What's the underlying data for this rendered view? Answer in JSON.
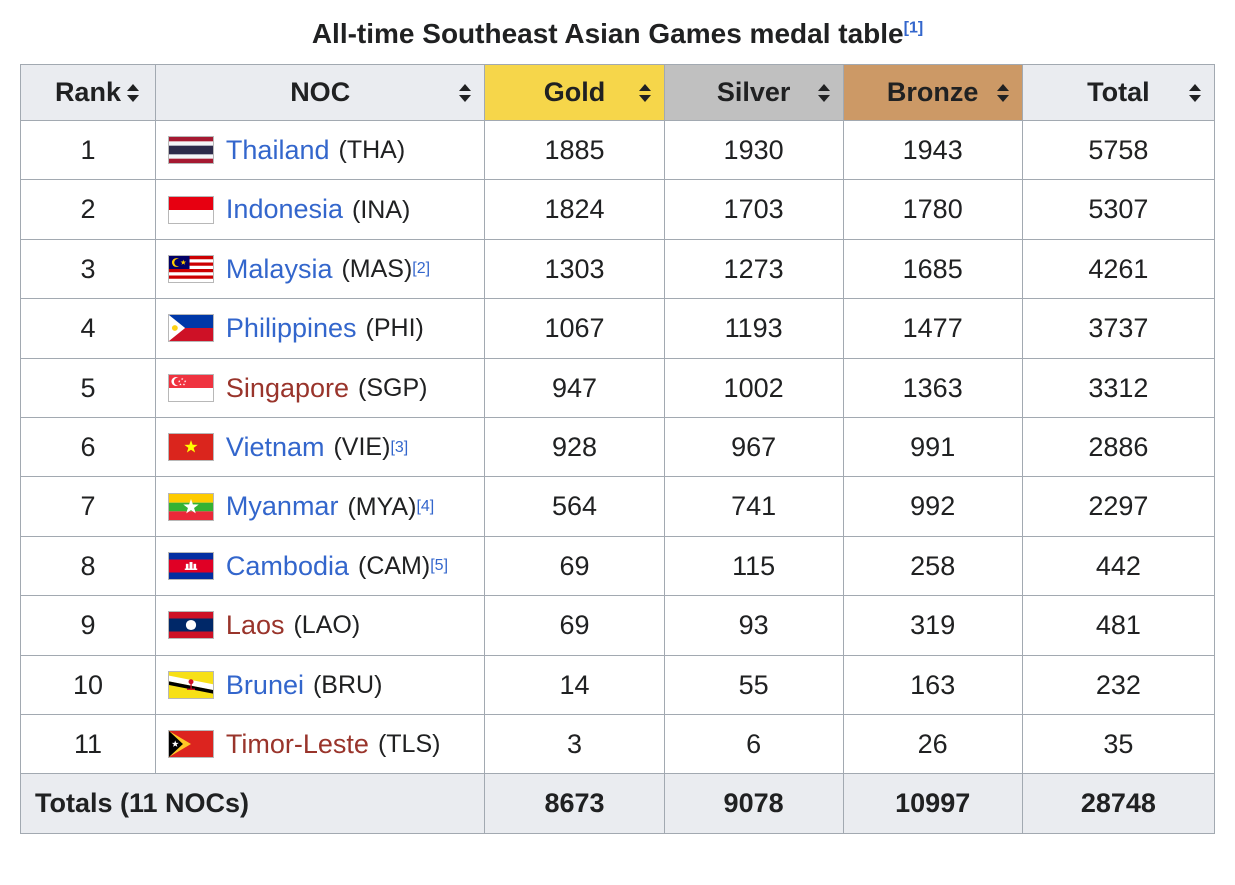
{
  "title": {
    "text": "All-time Southeast Asian Games medal table",
    "ref": "[1]"
  },
  "colors": {
    "header_bg": "#eaecf0",
    "gold": "#f6d64a",
    "silver": "#c0c0c0",
    "bronze": "#cc9966",
    "border": "#a2a9b1",
    "link": "#3366cc",
    "visited": "#99342b"
  },
  "table": {
    "headers": {
      "rank": "Rank",
      "noc": "NOC",
      "gold": "Gold",
      "silver": "Silver",
      "bronze": "Bronze",
      "total": "Total"
    },
    "rows": [
      {
        "rank": "1",
        "country": "Thailand",
        "code": "(THA)",
        "ref": "",
        "flag": "tha",
        "link": "normal",
        "gold": "1885",
        "silver": "1930",
        "bronze": "1943",
        "total": "5758"
      },
      {
        "rank": "2",
        "country": "Indonesia",
        "code": "(INA)",
        "ref": "",
        "flag": "ina",
        "link": "normal",
        "gold": "1824",
        "silver": "1703",
        "bronze": "1780",
        "total": "5307"
      },
      {
        "rank": "3",
        "country": "Malaysia",
        "code": "(MAS)",
        "ref": "[2]",
        "flag": "mas",
        "link": "normal",
        "gold": "1303",
        "silver": "1273",
        "bronze": "1685",
        "total": "4261"
      },
      {
        "rank": "4",
        "country": "Philippines",
        "code": "(PHI)",
        "ref": "",
        "flag": "phi",
        "link": "normal",
        "gold": "1067",
        "silver": "1193",
        "bronze": "1477",
        "total": "3737"
      },
      {
        "rank": "5",
        "country": "Singapore",
        "code": "(SGP)",
        "ref": "",
        "flag": "sgp",
        "link": "visited",
        "gold": "947",
        "silver": "1002",
        "bronze": "1363",
        "total": "3312"
      },
      {
        "rank": "6",
        "country": "Vietnam",
        "code": "(VIE)",
        "ref": "[3]",
        "flag": "vie",
        "link": "normal",
        "gold": "928",
        "silver": "967",
        "bronze": "991",
        "total": "2886"
      },
      {
        "rank": "7",
        "country": "Myanmar",
        "code": "(MYA)",
        "ref": "[4]",
        "flag": "mya",
        "link": "normal",
        "gold": "564",
        "silver": "741",
        "bronze": "992",
        "total": "2297"
      },
      {
        "rank": "8",
        "country": "Cambodia",
        "code": "(CAM)",
        "ref": "[5]",
        "flag": "cam",
        "link": "normal",
        "gold": "69",
        "silver": "115",
        "bronze": "258",
        "total": "442"
      },
      {
        "rank": "9",
        "country": "Laos",
        "code": "(LAO)",
        "ref": "",
        "flag": "lao",
        "link": "visited",
        "gold": "69",
        "silver": "93",
        "bronze": "319",
        "total": "481"
      },
      {
        "rank": "10",
        "country": "Brunei",
        "code": "(BRU)",
        "ref": "",
        "flag": "bru",
        "link": "normal",
        "gold": "14",
        "silver": "55",
        "bronze": "163",
        "total": "232"
      },
      {
        "rank": "11",
        "country": "Timor-Leste",
        "code": "(TLS)",
        "ref": "",
        "flag": "tls",
        "link": "visited",
        "gold": "3",
        "silver": "6",
        "bronze": "26",
        "total": "35"
      }
    ],
    "totals": {
      "label": "Totals (11 NOCs)",
      "gold": "8673",
      "silver": "9078",
      "bronze": "10997",
      "total": "28748"
    }
  }
}
